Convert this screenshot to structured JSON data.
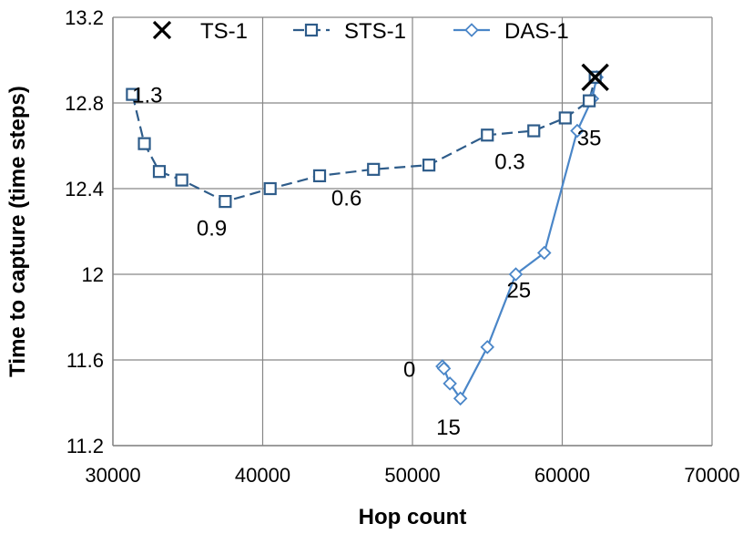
{
  "chart_data": {
    "type": "scatter",
    "xlabel": "Hop count",
    "ylabel": "Time to capture (time steps)",
    "xlim": [
      30000,
      70000
    ],
    "ylim": [
      11.2,
      13.2
    ],
    "x_ticks": [
      "30000",
      "40000",
      "50000",
      "60000",
      "70000"
    ],
    "y_ticks": [
      "11.2",
      "11.6",
      "12",
      "12.4",
      "12.8",
      "13.2"
    ],
    "grid": true,
    "legend_position": "top",
    "series": [
      {
        "name": "TS-1",
        "marker": "x",
        "line": "none",
        "color": "#000000",
        "points": [
          [
            62200,
            12.92
          ]
        ]
      },
      {
        "name": "STS-1",
        "marker": "square",
        "line": "dashed",
        "color": "#2E5C8A",
        "points": [
          [
            31300,
            12.84
          ],
          [
            32100,
            12.61
          ],
          [
            33100,
            12.48
          ],
          [
            34600,
            12.44
          ],
          [
            37500,
            12.34
          ],
          [
            40500,
            12.4
          ],
          [
            43800,
            12.46
          ],
          [
            47400,
            12.49
          ],
          [
            51100,
            12.51
          ],
          [
            55000,
            12.65
          ],
          [
            58100,
            12.67
          ],
          [
            60200,
            12.73
          ],
          [
            61800,
            12.81
          ],
          [
            62200,
            12.92
          ]
        ]
      },
      {
        "name": "DAS-1",
        "marker": "diamond",
        "line": "solid",
        "color": "#4A86C8",
        "points": [
          [
            52000,
            11.57
          ],
          [
            52100,
            11.56
          ],
          [
            52500,
            11.49
          ],
          [
            53200,
            11.42
          ],
          [
            55000,
            11.66
          ],
          [
            56900,
            12.0
          ],
          [
            58800,
            12.1
          ],
          [
            61000,
            12.67
          ],
          [
            62000,
            12.82
          ],
          [
            62300,
            12.92
          ]
        ]
      }
    ],
    "annotations": [
      {
        "text": "1.3",
        "x": 32300,
        "y": 12.84
      },
      {
        "text": "0.9",
        "x": 36600,
        "y": 12.22
      },
      {
        "text": "0.6",
        "x": 45600,
        "y": 12.36
      },
      {
        "text": "0.3",
        "x": 56500,
        "y": 12.53
      },
      {
        "text": "35",
        "x": 61800,
        "y": 12.64
      },
      {
        "text": "25",
        "x": 57100,
        "y": 11.93
      },
      {
        "text": "0",
        "x": 49800,
        "y": 11.56
      },
      {
        "text": "15",
        "x": 52400,
        "y": 11.29
      }
    ]
  }
}
